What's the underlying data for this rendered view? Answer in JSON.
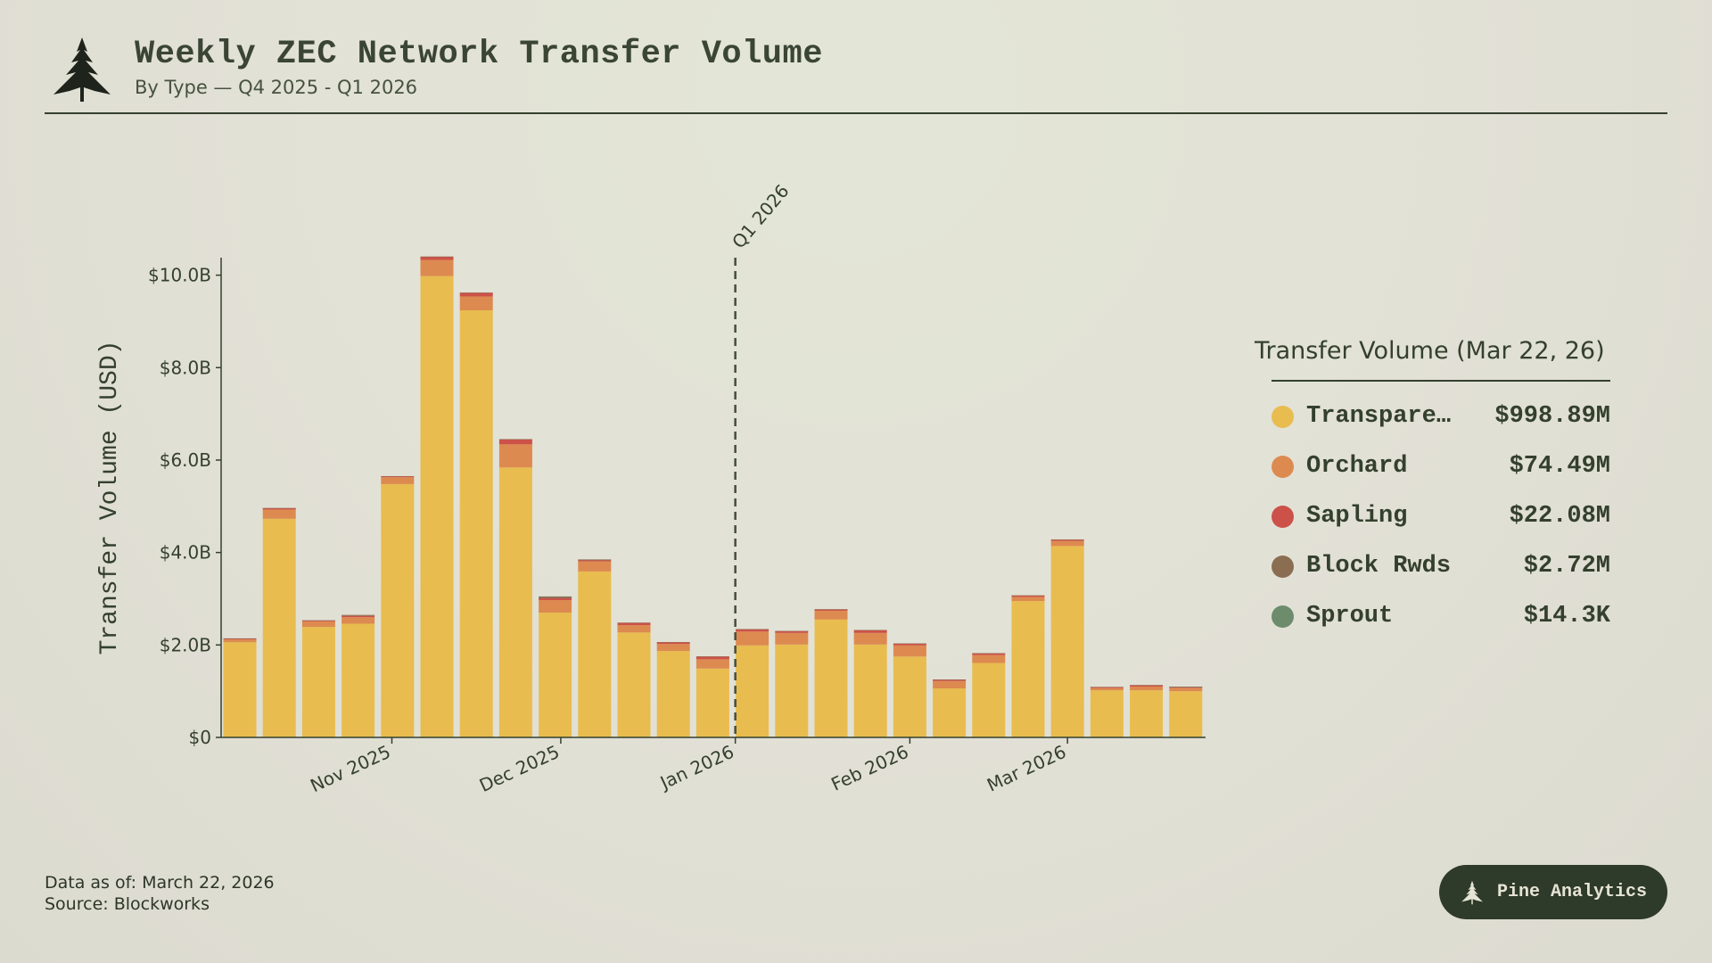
{
  "header": {
    "title": "Weekly ZEC Network Transfer Volume",
    "subtitle": "By Type — Q4 2025 - Q1 2026"
  },
  "legend": {
    "title": "Transfer Volume (Mar 22, 26)",
    "items": [
      {
        "label": "Transpare…",
        "value": "$998.89M",
        "color": "#e8bc4f"
      },
      {
        "label": "Orchard",
        "value": "$74.49M",
        "color": "#dd8a50"
      },
      {
        "label": "Sapling",
        "value": "$22.08M",
        "color": "#cc5249"
      },
      {
        "label": "Block Rwds",
        "value": "$2.72M",
        "color": "#8b6e52"
      },
      {
        "label": "Sprout",
        "value": "$14.3K",
        "color": "#6c8c6c"
      }
    ]
  },
  "footer": {
    "data_as_of": "Data as of: March 22, 2026",
    "source": "Source: Blockworks"
  },
  "badge": {
    "label": "Pine Analytics"
  },
  "chart_data": {
    "type": "bar",
    "stacked": true,
    "ylabel": "Transfer Volume (USD)",
    "ylim": [
      0,
      10.4
    ],
    "y_unit": "billions USD",
    "y_ticks": [
      "$0",
      "$2.0B",
      "$4.0B",
      "$6.0B",
      "$8.0B",
      "$10.0B"
    ],
    "y_tick_values": [
      0,
      2,
      4,
      6,
      8,
      10
    ],
    "x_ticks": [
      {
        "label": "Nov 2025",
        "date": "2025-11-01"
      },
      {
        "label": "Dec 2025",
        "date": "2025-12-01"
      },
      {
        "label": "Jan 2026",
        "date": "2026-01-01"
      },
      {
        "label": "Feb 2026",
        "date": "2026-02-01"
      },
      {
        "label": "Mar 2026",
        "date": "2026-03-01"
      }
    ],
    "annotation": {
      "label": "Q1 2026",
      "date": "2026-01-01",
      "style": "dashed"
    },
    "grid": false,
    "legend_position": "right",
    "x": [
      "2025-10-05",
      "2025-10-12",
      "2025-10-19",
      "2025-10-26",
      "2025-11-02",
      "2025-11-09",
      "2025-11-16",
      "2025-11-23",
      "2025-11-30",
      "2025-12-07",
      "2025-12-14",
      "2025-12-21",
      "2025-12-28",
      "2026-01-04",
      "2026-01-11",
      "2026-01-18",
      "2026-01-25",
      "2026-02-01",
      "2026-02-08",
      "2026-02-15",
      "2026-02-22",
      "2026-03-01",
      "2026-03-08",
      "2026-03-15",
      "2026-03-22"
    ],
    "series": [
      {
        "name": "Transparent",
        "color": "#e8bc4f",
        "values": [
          2.06,
          4.73,
          2.39,
          2.46,
          5.48,
          9.98,
          9.24,
          5.84,
          2.7,
          3.59,
          2.27,
          1.87,
          1.49,
          1.99,
          2.01,
          2.55,
          2.01,
          1.75,
          1.06,
          1.61,
          2.95,
          4.14,
          1.02,
          1.02,
          0.999
        ]
      },
      {
        "name": "Orchard",
        "color": "#dd8a50",
        "values": [
          0.06,
          0.2,
          0.12,
          0.14,
          0.15,
          0.35,
          0.3,
          0.5,
          0.27,
          0.22,
          0.16,
          0.15,
          0.2,
          0.3,
          0.25,
          0.19,
          0.25,
          0.24,
          0.16,
          0.17,
          0.09,
          0.11,
          0.05,
          0.08,
          0.074
        ]
      },
      {
        "name": "Sapling",
        "color": "#cc5249",
        "values": [
          0.02,
          0.03,
          0.02,
          0.03,
          0.02,
          0.07,
          0.08,
          0.11,
          0.04,
          0.02,
          0.05,
          0.04,
          0.06,
          0.05,
          0.04,
          0.03,
          0.06,
          0.04,
          0.03,
          0.04,
          0.03,
          0.03,
          0.02,
          0.03,
          0.022
        ]
      },
      {
        "name": "Block Rwds",
        "color": "#8b6e52",
        "values": [
          0.003,
          0.003,
          0.003,
          0.02,
          0.003,
          0.003,
          0.003,
          0.003,
          0.04,
          0.02,
          0.003,
          0.003,
          0.003,
          0.003,
          0.003,
          0.003,
          0.003,
          0.003,
          0.003,
          0.003,
          0.003,
          0.003,
          0.003,
          0.003,
          0.003
        ]
      },
      {
        "name": "Sprout",
        "color": "#6c8c6c",
        "values": [
          0,
          0,
          0,
          0,
          0,
          0,
          0,
          0,
          0,
          0,
          0,
          0,
          0,
          0,
          0,
          0,
          0,
          0,
          0,
          0,
          0,
          0,
          0,
          0,
          1.43e-05
        ]
      }
    ]
  }
}
